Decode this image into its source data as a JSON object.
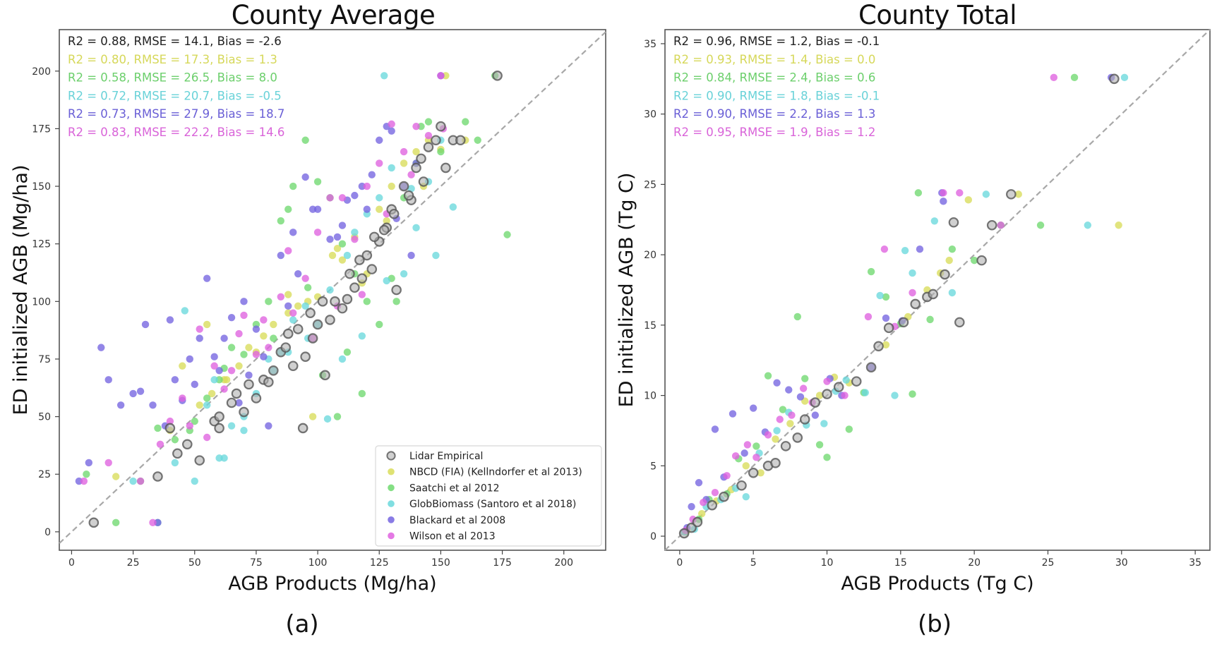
{
  "figure": {
    "panel_labels": [
      "(a)",
      "(b)"
    ]
  },
  "chart_data": [
    {
      "type": "scatter",
      "title": "County Average",
      "xlabel": "AGB Products (Mg/ha)",
      "ylabel": "ED initialized AGB (Mg/ha)",
      "xlim": [
        -5,
        217
      ],
      "ylim": [
        -8,
        218
      ],
      "xticks": [
        0,
        25,
        50,
        75,
        100,
        125,
        150,
        175,
        200
      ],
      "yticks": [
        0,
        25,
        50,
        75,
        100,
        125,
        150,
        175,
        200
      ],
      "grid": false,
      "reference_line": "1:1 dashed",
      "legend_position": "lower-right",
      "stats": [
        {
          "series": "Lidar Empirical",
          "text": "R2 = 0.88, RMSE = 14.1, Bias = -2.6"
        },
        {
          "series": "NBCD (FIA) (Kellndorfer et al 2013)",
          "text": "R2 = 0.80, RMSE = 17.3, Bias = 1.3"
        },
        {
          "series": "Saatchi et al 2012",
          "text": "R2 = 0.58, RMSE = 26.5, Bias = 8.0"
        },
        {
          "series": "GlobBiomass (Santoro et al 2018)",
          "text": "R2 = 0.72, RMSE = 20.7, Bias = -0.5"
        },
        {
          "series": "Blackard et al 2008",
          "text": "R2 = 0.73, RMSE = 27.9, Bias = 18.7"
        },
        {
          "series": "Wilson et al 2013",
          "text": "R2 = 0.83, RMSE = 22.2, Bias = 14.6"
        }
      ],
      "series": [
        {
          "name": "Lidar Empirical",
          "color": "#b0b0b0",
          "edge": "#555555",
          "x": [
            9,
            35,
            43,
            40,
            52,
            58,
            60,
            65,
            70,
            72,
            75,
            78,
            82,
            85,
            88,
            90,
            95,
            98,
            100,
            103,
            105,
            110,
            112,
            115,
            118,
            120,
            122,
            125,
            128,
            130,
            132,
            135,
            138,
            140,
            142,
            145,
            148,
            150,
            152,
            155,
            158,
            173,
            94,
            47,
            60,
            67,
            80,
            87,
            92,
            97,
            102,
            107,
            113,
            117,
            123,
            127,
            131,
            137,
            143
          ],
          "y": [
            4,
            24,
            34,
            45,
            31,
            48,
            45,
            56,
            52,
            64,
            58,
            66,
            70,
            78,
            86,
            72,
            76,
            84,
            90,
            68,
            92,
            97,
            101,
            106,
            110,
            120,
            114,
            126,
            132,
            140,
            105,
            150,
            144,
            158,
            162,
            167,
            170,
            176,
            158,
            170,
            170,
            198,
            45,
            38,
            50,
            60,
            65,
            80,
            88,
            95,
            100,
            100,
            112,
            118,
            128,
            131,
            138,
            146,
            152
          ]
        },
        {
          "name": "NBCD (FIA) (Kellndorfer et al 2013)",
          "color": "#d9dd5a",
          "x": [
            18,
            35,
            45,
            52,
            57,
            62,
            68,
            72,
            78,
            82,
            88,
            92,
            96,
            100,
            106,
            110,
            115,
            120,
            125,
            130,
            135,
            140,
            145,
            152,
            160,
            40,
            75,
            108,
            118,
            55,
            63,
            88,
            98,
            128,
            143,
            150
          ],
          "y": [
            24,
            4,
            72,
            55,
            60,
            66,
            72,
            80,
            85,
            90,
            95,
            98,
            100,
            102,
            120,
            118,
            128,
            112,
            140,
            150,
            160,
            165,
            170,
            198,
            170,
            44,
            78,
            123,
            108,
            90,
            66,
            103,
            50,
            135,
            150,
            166
          ]
        },
        {
          "name": "Saatchi et al 2012",
          "color": "#6fd96f",
          "x": [
            6,
            18,
            28,
            35,
            42,
            50,
            55,
            60,
            65,
            70,
            75,
            80,
            85,
            90,
            95,
            100,
            105,
            110,
            115,
            120,
            125,
            130,
            135,
            140,
            145,
            150,
            160,
            165,
            177,
            48,
            62,
            82,
            88,
            96,
            112,
            118,
            132,
            142,
            172,
            102,
            108
          ],
          "y": [
            25,
            4,
            22,
            45,
            40,
            48,
            58,
            66,
            80,
            77,
            90,
            100,
            135,
            150,
            170,
            152,
            145,
            125,
            112,
            100,
            90,
            110,
            145,
            160,
            178,
            165,
            178,
            170,
            129,
            44,
            71,
            84,
            140,
            106,
            78,
            60,
            100,
            176,
            198,
            68,
            50
          ]
        },
        {
          "name": "GlobBiomass (Santoro et al 2018)",
          "color": "#6ad8dc",
          "x": [
            25,
            35,
            42,
            50,
            55,
            60,
            65,
            70,
            75,
            80,
            85,
            90,
            95,
            100,
            105,
            110,
            115,
            120,
            125,
            130,
            135,
            140,
            145,
            150,
            155,
            127,
            62,
            70,
            88,
            104,
            118,
            138,
            46,
            58,
            82,
            96,
            112,
            128,
            148
          ],
          "y": [
            22,
            4,
            30,
            22,
            55,
            32,
            46,
            50,
            60,
            75,
            78,
            92,
            98,
            90,
            105,
            75,
            130,
            138,
            145,
            158,
            112,
            132,
            152,
            170,
            141,
            198,
            32,
            44,
            78,
            49,
            85,
            149,
            96,
            66,
            70,
            84,
            120,
            109,
            120
          ]
        },
        {
          "name": "Blackard et al 2008",
          "color": "#7464e0",
          "x": [
            3,
            7,
            12,
            15,
            20,
            25,
            30,
            35,
            38,
            42,
            45,
            50,
            55,
            60,
            65,
            70,
            75,
            80,
            85,
            90,
            95,
            100,
            105,
            110,
            115,
            120,
            125,
            130,
            135,
            140,
            28,
            33,
            40,
            48,
            52,
            58,
            62,
            68,
            72,
            78,
            88,
            92,
            98,
            108,
            112,
            118,
            122,
            128,
            132,
            138,
            150
          ],
          "y": [
            22,
            30,
            80,
            66,
            55,
            60,
            90,
            4,
            46,
            66,
            57,
            64,
            110,
            70,
            93,
            100,
            88,
            46,
            120,
            130,
            154,
            140,
            127,
            133,
            146,
            140,
            170,
            174,
            150,
            160,
            61,
            55,
            92,
            75,
            84,
            76,
            84,
            56,
            68,
            76,
            98,
            112,
            140,
            128,
            144,
            150,
            155,
            176,
            136,
            120,
            198
          ]
        },
        {
          "name": "Wilson et al 2013",
          "color": "#df62df",
          "x": [
            5,
            15,
            28,
            33,
            40,
            45,
            52,
            58,
            65,
            70,
            75,
            80,
            85,
            90,
            95,
            100,
            105,
            110,
            115,
            120,
            125,
            130,
            135,
            140,
            145,
            150,
            55,
            62,
            68,
            78,
            88,
            98,
            108,
            118,
            128,
            138,
            48,
            36,
            151
          ],
          "y": [
            22,
            30,
            22,
            4,
            48,
            58,
            88,
            72,
            70,
            94,
            77,
            80,
            102,
            95,
            110,
            130,
            145,
            145,
            127,
            150,
            160,
            177,
            165,
            176,
            172,
            198,
            41,
            62,
            86,
            92,
            122,
            84,
            98,
            103,
            138,
            155,
            46,
            38,
            175
          ]
        }
      ]
    },
    {
      "type": "scatter",
      "title": "County Total",
      "xlabel": "AGB Products (Tg C)",
      "ylabel": "ED initialized AGB (Tg C)",
      "xlim": [
        -1,
        36
      ],
      "ylim": [
        -1,
        36
      ],
      "xticks": [
        0,
        5,
        10,
        15,
        20,
        25,
        30,
        35
      ],
      "yticks": [
        0,
        5,
        10,
        15,
        20,
        25,
        30,
        35
      ],
      "grid": false,
      "reference_line": "1:1 dashed",
      "stats": [
        {
          "series": "Lidar Empirical",
          "text": "R2 = 0.96, RMSE = 1.2, Bias = -0.1"
        },
        {
          "series": "NBCD (FIA) (Kellndorfer et al 2013)",
          "text": "R2 = 0.93, RMSE = 1.4, Bias = 0.0"
        },
        {
          "series": "Saatchi et al 2012",
          "text": "R2 = 0.84, RMSE = 2.4, Bias = 0.6"
        },
        {
          "series": "GlobBiomass (Santoro et al 2018)",
          "text": "R2 = 0.90, RMSE = 1.8, Bias = -0.1"
        },
        {
          "series": "Blackard et al 2008",
          "text": "R2 = 0.90, RMSE = 2.2, Bias = 1.3"
        },
        {
          "series": "Wilson et al 2013",
          "text": "R2 = 0.95, RMSE = 1.9, Bias = 1.2"
        }
      ],
      "series": [
        {
          "name": "Lidar Empirical",
          "color": "#b0b0b0",
          "edge": "#555555",
          "x": [
            0.3,
            0.8,
            1.2,
            2.2,
            3.0,
            4.2,
            5.0,
            6.0,
            6.5,
            7.2,
            8.0,
            8.5,
            9.2,
            10.0,
            10.8,
            12.0,
            13.0,
            13.5,
            14.2,
            15.2,
            16.0,
            16.8,
            17.2,
            18.0,
            18.6,
            19.0,
            20.5,
            21.2,
            22.5,
            29.5
          ],
          "y": [
            0.2,
            0.6,
            1.0,
            2.2,
            2.8,
            3.6,
            4.5,
            5.0,
            5.2,
            6.4,
            7.0,
            8.3,
            9.5,
            10.1,
            10.6,
            11.0,
            12.0,
            13.5,
            14.8,
            15.2,
            16.5,
            17.0,
            17.2,
            18.6,
            22.3,
            15.2,
            19.6,
            22.1,
            24.3,
            32.5
          ]
        },
        {
          "name": "NBCD (FIA) (Kellndorfer et al 2013)",
          "color": "#d9dd5a",
          "x": [
            0.5,
            1.5,
            2.5,
            3.5,
            4.5,
            5.5,
            6.5,
            7.5,
            8.5,
            9.5,
            10.5,
            11.5,
            14.0,
            15.5,
            16.8,
            17.7,
            18.3,
            19.6,
            23.0,
            29.8
          ],
          "y": [
            0.4,
            1.6,
            2.5,
            3.3,
            5.0,
            4.5,
            6.9,
            8.0,
            9.6,
            10.0,
            11.3,
            10.9,
            13.6,
            15.6,
            17.5,
            18.7,
            19.6,
            23.9,
            24.3,
            22.1
          ]
        },
        {
          "name": "Saatchi et al 2012",
          "color": "#6fd96f",
          "x": [
            0.4,
            1.3,
            2.0,
            3.2,
            4.0,
            5.2,
            6.0,
            7.0,
            8.0,
            8.5,
            9.5,
            10.0,
            11.5,
            12.5,
            13.0,
            14.0,
            15.0,
            15.8,
            16.2,
            17.0,
            18.5,
            20.0,
            21.8,
            24.5,
            26.8
          ],
          "y": [
            0.3,
            1.2,
            2.6,
            3.0,
            5.5,
            6.4,
            11.4,
            9.0,
            15.6,
            11.2,
            6.5,
            5.6,
            7.6,
            10.2,
            18.8,
            17.0,
            15.1,
            10.1,
            24.4,
            15.4,
            20.4,
            19.6,
            22.1,
            22.1,
            32.6
          ]
        },
        {
          "name": "GlobBiomass (Santoro et al 2018)",
          "color": "#6ad8dc",
          "x": [
            0.3,
            1.0,
            1.8,
            2.8,
            3.8,
            4.5,
            5.4,
            6.6,
            7.4,
            8.6,
            9.8,
            10.6,
            11.3,
            12.6,
            13.6,
            14.6,
            15.3,
            15.8,
            17.3,
            18.5,
            20.8,
            27.7,
            30.2
          ],
          "y": [
            0.3,
            0.5,
            2.1,
            2.6,
            3.4,
            2.8,
            5.9,
            7.5,
            8.8,
            7.9,
            8.0,
            10.3,
            11.1,
            10.2,
            17.1,
            10.0,
            20.3,
            18.7,
            22.4,
            17.3,
            24.3,
            22.1,
            32.6
          ]
        },
        {
          "name": "Blackard et al 2008",
          "color": "#7464e0",
          "x": [
            0.5,
            0.8,
            1.3,
            1.8,
            2.4,
            3.0,
            3.6,
            4.4,
            5.0,
            5.8,
            6.6,
            7.4,
            8.2,
            9.2,
            10.2,
            11.0,
            13.0,
            14.0,
            15.1,
            16.3,
            17.8,
            17.9,
            29.3
          ],
          "y": [
            0.6,
            2.1,
            3.8,
            2.6,
            7.6,
            4.2,
            8.7,
            5.9,
            9.1,
            7.4,
            10.9,
            10.4,
            9.9,
            8.6,
            11.2,
            10.0,
            12.0,
            15.5,
            15.3,
            20.4,
            24.4,
            23.8,
            32.6
          ]
        },
        {
          "name": "Wilson et al 2013",
          "color": "#df62df",
          "x": [
            0.4,
            0.9,
            1.6,
            2.4,
            3.2,
            3.8,
            4.6,
            5.2,
            6.0,
            6.8,
            7.6,
            8.4,
            9.0,
            10.0,
            11.2,
            12.8,
            13.9,
            14.6,
            15.8,
            17.9,
            19.0,
            21.8,
            25.4
          ],
          "y": [
            0.4,
            1.2,
            2.4,
            3.1,
            4.3,
            5.7,
            6.5,
            5.6,
            7.2,
            8.3,
            8.6,
            10.5,
            9.5,
            11.0,
            10.0,
            15.6,
            20.4,
            14.9,
            17.3,
            24.4,
            24.4,
            22.1,
            32.6
          ]
        }
      ]
    }
  ]
}
